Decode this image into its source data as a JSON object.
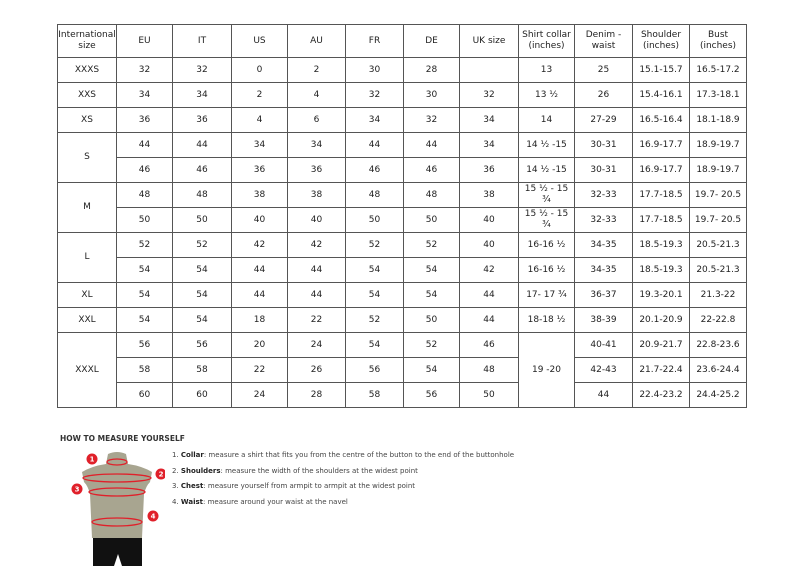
{
  "headers": [
    "International size",
    "EU",
    "IT",
    "US",
    "AU",
    "FR",
    "DE",
    "UK size",
    "Shirt collar (inches)",
    "Denim - waist",
    "Shoulder (inches)",
    "Bust (inches)"
  ],
  "groups": [
    {
      "size": "XXXS",
      "rows": [
        [
          "32",
          "32",
          "0",
          "2",
          "30",
          "28",
          "",
          "13",
          "25",
          "15.1-15.7",
          "16.5-17.2"
        ]
      ]
    },
    {
      "size": "XXS",
      "rows": [
        [
          "34",
          "34",
          "2",
          "4",
          "32",
          "30",
          "32",
          "13 ½",
          "26",
          "15.4-16.1",
          "17.3-18.1"
        ]
      ]
    },
    {
      "size": "XS",
      "rows": [
        [
          "36",
          "36",
          "4",
          "6",
          "34",
          "32",
          "34",
          "14",
          "27-29",
          "16.5-16.4",
          "18.1-18.9"
        ]
      ]
    },
    {
      "size": "S",
      "rows": [
        [
          "44",
          "44",
          "34",
          "34",
          "44",
          "44",
          "34",
          "14 ½ -15",
          "30-31",
          "16.9-17.7",
          "18.9-19.7"
        ],
        [
          "46",
          "46",
          "36",
          "36",
          "46",
          "46",
          "36",
          "14 ½ -15",
          "30-31",
          "16.9-17.7",
          "18.9-19.7"
        ]
      ]
    },
    {
      "size": "M",
      "rows": [
        [
          "48",
          "48",
          "38",
          "38",
          "48",
          "48",
          "38",
          "15 ½ - 15 ¾",
          "32-33",
          "17.7-18.5",
          "19.7- 20.5"
        ],
        [
          "50",
          "50",
          "40",
          "40",
          "50",
          "50",
          "40",
          "15 ½ - 15 ¾",
          "32-33",
          "17.7-18.5",
          "19.7- 20.5"
        ]
      ]
    },
    {
      "size": "L",
      "rows": [
        [
          "52",
          "52",
          "42",
          "42",
          "52",
          "52",
          "40",
          "16-16 ½",
          "34-35",
          "18.5-19.3",
          "20.5-21.3"
        ],
        [
          "54",
          "54",
          "44",
          "44",
          "54",
          "54",
          "42",
          "16-16 ½",
          "34-35",
          "18.5-19.3",
          "20.5-21.3"
        ]
      ]
    },
    {
      "size": "XL",
      "rows": [
        [
          "54",
          "54",
          "44",
          "44",
          "54",
          "54",
          "44",
          "17- 17 ¾",
          "36-37",
          "19.3-20.1",
          "21.3-22"
        ]
      ]
    },
    {
      "size": "XXL",
      "rows": [
        [
          "54",
          "54",
          "18",
          "22",
          "52",
          "50",
          "44",
          "18-18 ½",
          "38-39",
          "20.1-20.9",
          "22-22.8"
        ]
      ]
    },
    {
      "size": "XXXL",
      "rows": [
        [
          "56",
          "56",
          "20",
          "24",
          "54",
          "52",
          "46",
          "19 -20",
          "40-41",
          "20.9-21.7",
          "22.8-23.6"
        ],
        [
          "58",
          "58",
          "22",
          "26",
          "56",
          "54",
          "48",
          null,
          "42-43",
          "21.7-22.4",
          "23.6-24.4"
        ],
        [
          "60",
          "60",
          "24",
          "28",
          "58",
          "56",
          "50",
          null,
          "44",
          "22.4-23.2",
          "24.4-25.2"
        ]
      ]
    }
  ],
  "measure": {
    "title": "HOW TO MEASURE YOURSELF",
    "steps": [
      {
        "num": "1.",
        "label": "Collar",
        "text": ": measure a shirt that fits you from the centre of the button to the end of the buttonhole"
      },
      {
        "num": "2.",
        "label": "Shoulders",
        "text": ": measure the width of the shoulders at the widest point"
      },
      {
        "num": "3.",
        "label": "Chest",
        "text": ": measure yourself from armpit to armpit at the widest point"
      },
      {
        "num": "4.",
        "label": "Waist",
        "text": ": measure around your waist at the navel"
      }
    ],
    "markers": [
      "1",
      "2",
      "3",
      "4"
    ],
    "marker_color": "#e0202a"
  }
}
